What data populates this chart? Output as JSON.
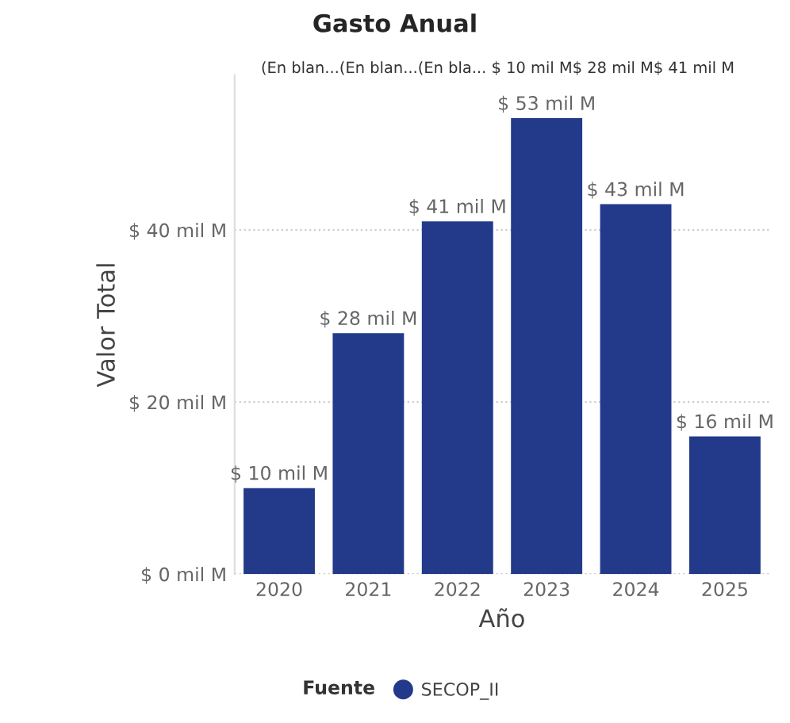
{
  "chart_data": {
    "type": "bar",
    "title": "Gasto Anual",
    "xlabel": "Año",
    "ylabel": "Valor Total",
    "legend_title": "Fuente",
    "annotations": [
      "(En blan...(En blan...(En bla... $ 10 mil M$ 28 mil M$ 41 mil M"
    ],
    "categories": [
      "2020",
      "2021",
      "2022",
      "2023",
      "2024",
      "2025"
    ],
    "series": [
      {
        "name": "SECOP_II",
        "color": "#233a8b",
        "values": [
          10,
          28,
          41,
          53,
          43,
          16
        ],
        "value_labels": [
          "$ 10 mil M",
          "$ 28 mil M",
          "$ 41 mil M",
          "$ 53 mil M",
          "$ 43 mil M",
          "$ 16 mil M"
        ]
      }
    ],
    "ylim": [
      0,
      58
    ],
    "yticks": [
      {
        "value": 0,
        "label": "$ 0 mil M"
      },
      {
        "value": 20,
        "label": "$ 20 mil M"
      },
      {
        "value": 40,
        "label": "$ 40 mil M"
      }
    ],
    "grid": "y",
    "legend": "bottom"
  }
}
